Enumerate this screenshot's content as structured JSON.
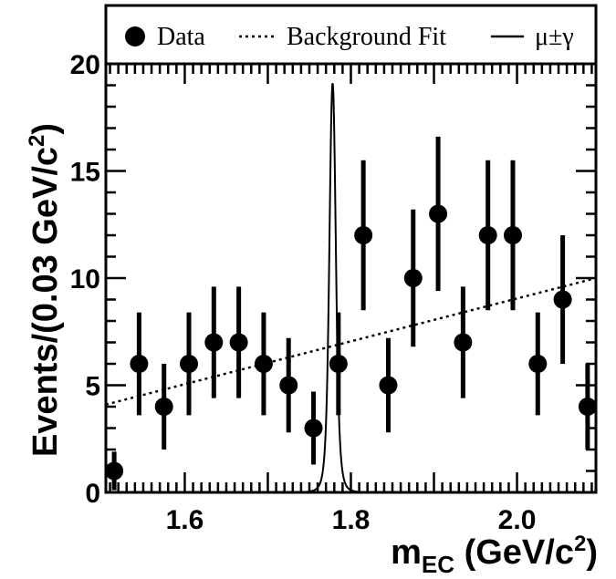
{
  "chart_data": {
    "type": "scatter",
    "xlabel": "m_EC (GeV/c^2)",
    "ylabel": "Events/(0.03 GeV/c^2)",
    "xlim": [
      1.505,
      2.095
    ],
    "ylim": [
      0,
      20
    ],
    "x_ticks": [
      1.6,
      1.8,
      2.0
    ],
    "x_tick_labels": [
      "1.6",
      "1.8",
      "2.0"
    ],
    "y_ticks": [
      0,
      5,
      10,
      15,
      20
    ],
    "y_tick_labels": [
      "0",
      "5",
      "10",
      "15",
      "20"
    ],
    "legend": {
      "placement": "top",
      "entries": [
        {
          "label": "Data",
          "style": "marker"
        },
        {
          "label": "Background Fit",
          "style": "dotted"
        },
        {
          "label": "μ±γ",
          "style": "solid"
        }
      ]
    },
    "series": [
      {
        "name": "Data",
        "x": [
          1.515,
          1.545,
          1.575,
          1.605,
          1.635,
          1.665,
          1.695,
          1.725,
          1.755,
          1.785,
          1.815,
          1.845,
          1.875,
          1.905,
          1.935,
          1.965,
          1.995,
          2.025,
          2.055,
          2.085
        ],
        "y": [
          1,
          6,
          4,
          6,
          7,
          7,
          6,
          5,
          3,
          6,
          12,
          5,
          10,
          13,
          7,
          12,
          12,
          6,
          9,
          4
        ],
        "yerr": [
          0.9,
          2.4,
          2.0,
          2.4,
          2.6,
          2.6,
          2.4,
          2.2,
          1.7,
          2.4,
          3.5,
          2.2,
          3.2,
          3.6,
          2.6,
          3.5,
          3.5,
          2.4,
          3.0,
          2.0
        ]
      },
      {
        "name": "Background Fit",
        "x": [
          1.505,
          2.095
        ],
        "y": [
          4.1,
          10.0
        ]
      },
      {
        "name": "μ±γ",
        "peak_x": 1.778,
        "peak_y": 19.1,
        "width": 0.006
      }
    ]
  }
}
